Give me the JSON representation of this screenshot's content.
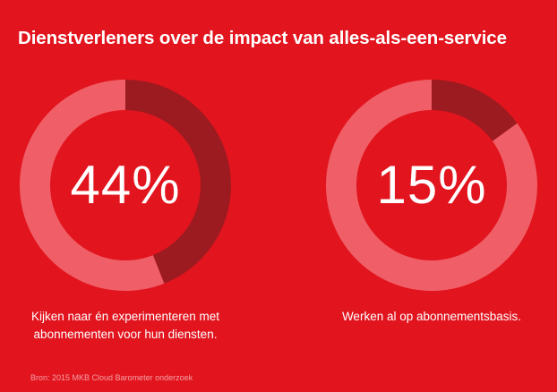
{
  "title": "Dienstverleners over de impact van alles-als-een-service",
  "chart_data": [
    {
      "type": "pie",
      "value": 44,
      "label": "44%",
      "caption": "Kijken naar én experimenteren met abonnementen voor hun diensten.",
      "colors": {
        "value": "#9b1b20",
        "rest": "#f05f67",
        "center": "#e2141e"
      }
    },
    {
      "type": "pie",
      "value": 15,
      "label": "15%",
      "caption": "Werken al op abonnementsbasis.",
      "colors": {
        "value": "#9b1b20",
        "rest": "#f05f67",
        "center": "#e2141e"
      }
    }
  ],
  "source": "Bron: 2015 MKB Cloud Barometer onderzoek"
}
